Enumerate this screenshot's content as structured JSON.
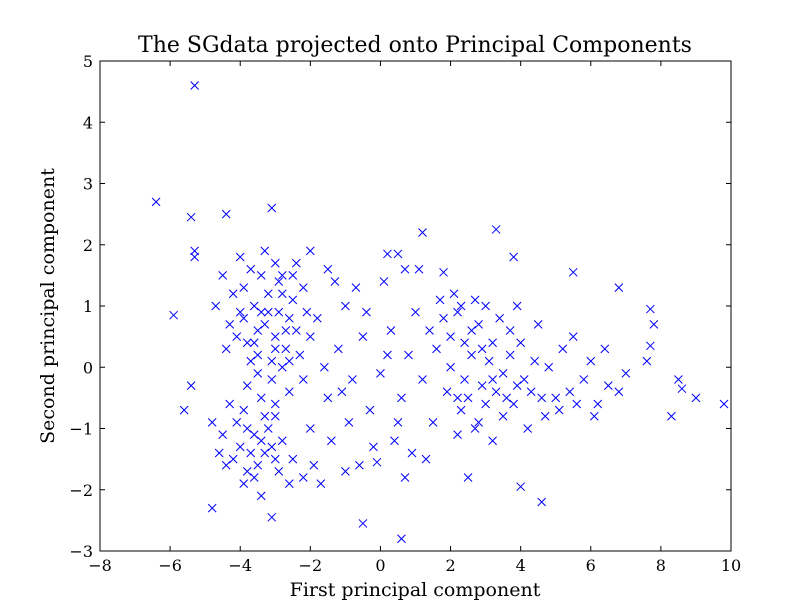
{
  "chart_data": {
    "type": "scatter",
    "title": "The SGdata projected onto Principal Components",
    "xlabel": "First principal component",
    "ylabel": "Second principal component",
    "xlim": [
      -8,
      10
    ],
    "ylim": [
      -3,
      5
    ],
    "xticks": [
      -8,
      -6,
      -4,
      -2,
      0,
      2,
      4,
      6,
      8,
      10
    ],
    "yticks": [
      -3,
      -2,
      -1,
      0,
      1,
      2,
      3,
      4,
      5
    ],
    "xtick_labels": [
      "−8",
      "−6",
      "−4",
      "−2",
      "0",
      "2",
      "4",
      "6",
      "8",
      "10"
    ],
    "ytick_labels": [
      "−3",
      "−2",
      "−1",
      "0",
      "1",
      "2",
      "3",
      "4",
      "5"
    ],
    "grid": false,
    "marker": "x",
    "color": "#0000ff",
    "points": [
      [
        -5.3,
        4.6
      ],
      [
        -6.4,
        2.7
      ],
      [
        -5.4,
        2.45
      ],
      [
        -4.4,
        2.5
      ],
      [
        -3.1,
        2.6
      ],
      [
        -5.3,
        1.9
      ],
      [
        -5.3,
        1.8
      ],
      [
        -5.9,
        0.85
      ],
      [
        -5.6,
        -0.7
      ],
      [
        -5.4,
        -0.3
      ],
      [
        -4.8,
        -2.3
      ],
      [
        -3.1,
        -2.45
      ],
      [
        -0.5,
        -2.55
      ],
      [
        0.6,
        -2.8
      ],
      [
        4.0,
        -1.95
      ],
      [
        4.6,
        -2.2
      ],
      [
        1.2,
        2.2
      ],
      [
        3.3,
        2.25
      ],
      [
        3.8,
        1.8
      ],
      [
        5.5,
        1.55
      ],
      [
        6.8,
        1.3
      ],
      [
        7.7,
        0.95
      ],
      [
        7.8,
        0.7
      ],
      [
        7.7,
        0.35
      ],
      [
        7.6,
        0.1
      ],
      [
        8.3,
        -0.8
      ],
      [
        8.5,
        -0.2
      ],
      [
        8.6,
        -0.35
      ],
      [
        9.0,
        -0.5
      ],
      [
        9.8,
        -0.6
      ],
      [
        4.2,
        -1.0
      ],
      [
        3.2,
        -1.2
      ],
      [
        2.5,
        -1.8
      ],
      [
        0.7,
        -1.8
      ],
      [
        -0.1,
        -1.55
      ],
      [
        0.2,
        1.85
      ],
      [
        0.5,
        1.85
      ],
      [
        0.7,
        1.6
      ],
      [
        1.8,
        1.55
      ],
      [
        -2.0,
        1.9
      ],
      [
        -1.5,
        1.6
      ],
      [
        -4.0,
        1.8
      ],
      [
        -4.5,
        1.5
      ],
      [
        -4.7,
        1.0
      ],
      [
        -3.2,
        0.9
      ],
      [
        -3.0,
        0.5
      ],
      [
        -3.5,
        0.2
      ],
      [
        -2.8,
        1.2
      ],
      [
        -3.4,
        1.5
      ],
      [
        -2.6,
        0.8
      ],
      [
        -3.8,
        0.4
      ],
      [
        -3.1,
        -0.2
      ],
      [
        -2.9,
        1.4
      ],
      [
        -3.3,
        0.7
      ],
      [
        -2.5,
        1.1
      ],
      [
        -3.6,
        1.0
      ],
      [
        -2.7,
        0.3
      ],
      [
        -3.9,
        0.8
      ],
      [
        -2.4,
        0.6
      ],
      [
        -3.0,
        1.7
      ],
      [
        -3.7,
        0.1
      ],
      [
        -2.6,
        -0.4
      ],
      [
        -4.1,
        0.5
      ],
      [
        -2.2,
        1.3
      ],
      [
        -3.4,
        -0.5
      ],
      [
        -2.8,
        0.0
      ],
      [
        -3.2,
        1.2
      ],
      [
        -2.9,
        0.9
      ],
      [
        -3.5,
        0.6
      ],
      [
        -2.3,
        0.2
      ],
      [
        -4.2,
        1.2
      ],
      [
        -3.0,
        -0.8
      ],
      [
        -2.5,
        1.5
      ],
      [
        -3.6,
        0.4
      ],
      [
        -2.1,
        0.9
      ],
      [
        -3.8,
        -0.3
      ],
      [
        -2.7,
        0.6
      ],
      [
        -3.3,
        1.9
      ],
      [
        -4.4,
        0.3
      ],
      [
        -2.4,
        1.7
      ],
      [
        -3.1,
        0.1
      ],
      [
        -3.9,
        1.3
      ],
      [
        -2.6,
        0.1
      ],
      [
        -3.5,
        -0.1
      ],
      [
        -2.0,
        0.5
      ],
      [
        -4.0,
        0.9
      ],
      [
        -3.7,
        1.6
      ],
      [
        -2.2,
        -0.2
      ],
      [
        -3.0,
        0.3
      ],
      [
        -2.8,
        1.5
      ],
      [
        -3.4,
        0.9
      ],
      [
        -4.3,
        0.7
      ],
      [
        -3.8,
        -1.0
      ],
      [
        -3.4,
        -1.2
      ],
      [
        -3.0,
        -1.5
      ],
      [
        -4.2,
        -1.5
      ],
      [
        -3.6,
        -1.8
      ],
      [
        -3.9,
        -0.7
      ],
      [
        -3.2,
        -1.0
      ],
      [
        -4.5,
        -1.1
      ],
      [
        -3.7,
        -1.4
      ],
      [
        -3.3,
        -0.8
      ],
      [
        -4.0,
        -1.3
      ],
      [
        -2.9,
        -1.7
      ],
      [
        -3.5,
        -1.6
      ],
      [
        -4.1,
        -0.9
      ],
      [
        -3.1,
        -1.3
      ],
      [
        -3.8,
        -1.7
      ],
      [
        -2.6,
        -1.9
      ],
      [
        -4.4,
        -1.6
      ],
      [
        -3.6,
        -1.1
      ],
      [
        -3.3,
        -1.4
      ],
      [
        -4.6,
        -1.4
      ],
      [
        -2.8,
        -1.2
      ],
      [
        -3.9,
        -1.9
      ],
      [
        -3.4,
        -2.1
      ],
      [
        -4.3,
        -0.6
      ],
      [
        -3.0,
        -0.6
      ],
      [
        -2.5,
        -1.5
      ],
      [
        -4.8,
        -0.9
      ],
      [
        -2.0,
        -1.0
      ],
      [
        -1.5,
        -0.5
      ],
      [
        -1.2,
        0.3
      ],
      [
        -1.8,
        0.8
      ],
      [
        -0.8,
        -0.2
      ],
      [
        -1.0,
        1.0
      ],
      [
        -1.4,
        -1.2
      ],
      [
        -0.5,
        0.5
      ],
      [
        -0.9,
        -0.9
      ],
      [
        -1.6,
        0.0
      ],
      [
        -0.3,
        -0.7
      ],
      [
        -0.7,
        1.3
      ],
      [
        -1.9,
        -1.6
      ],
      [
        -1.1,
        -0.4
      ],
      [
        -0.4,
        0.9
      ],
      [
        -1.3,
        1.4
      ],
      [
        0.0,
        -0.1
      ],
      [
        0.3,
        0.6
      ],
      [
        -0.2,
        -1.3
      ],
      [
        0.5,
        -0.9
      ],
      [
        0.8,
        0.2
      ],
      [
        0.1,
        1.4
      ],
      [
        0.6,
        -0.5
      ],
      [
        1.0,
        0.9
      ],
      [
        -1.7,
        -1.9
      ],
      [
        -0.6,
        -1.6
      ],
      [
        0.4,
        -1.2
      ],
      [
        0.9,
        -1.4
      ],
      [
        -2.2,
        -1.8
      ],
      [
        -1.0,
        -1.7
      ],
      [
        1.2,
        -0.2
      ],
      [
        0.2,
        0.2
      ],
      [
        2.0,
        0.5
      ],
      [
        2.3,
        1.0
      ],
      [
        2.6,
        0.2
      ],
      [
        1.8,
        0.8
      ],
      [
        2.9,
        -0.3
      ],
      [
        3.2,
        0.4
      ],
      [
        2.5,
        -0.5
      ],
      [
        3.5,
        -0.1
      ],
      [
        2.1,
        1.2
      ],
      [
        2.8,
        0.7
      ],
      [
        3.0,
        -0.6
      ],
      [
        1.6,
        0.3
      ],
      [
        3.7,
        0.2
      ],
      [
        2.4,
        -0.2
      ],
      [
        3.3,
        -0.4
      ],
      [
        2.2,
        0.9
      ],
      [
        3.9,
        -0.3
      ],
      [
        2.7,
        1.1
      ],
      [
        1.9,
        -0.4
      ],
      [
        3.1,
        0.1
      ],
      [
        4.1,
        -0.2
      ],
      [
        2.0,
        0.0
      ],
      [
        3.6,
        -0.5
      ],
      [
        2.6,
        0.6
      ],
      [
        3.4,
        0.8
      ],
      [
        1.7,
        1.1
      ],
      [
        4.3,
        -0.4
      ],
      [
        2.9,
        0.3
      ],
      [
        3.8,
        -0.6
      ],
      [
        2.3,
        -0.7
      ],
      [
        4.6,
        -0.5
      ],
      [
        3.0,
        1.0
      ],
      [
        4.0,
        0.4
      ],
      [
        2.4,
        0.4
      ],
      [
        3.5,
        -0.8
      ],
      [
        2.8,
        -0.9
      ],
      [
        4.4,
        0.1
      ],
      [
        3.2,
        -0.2
      ],
      [
        2.2,
        -0.5
      ],
      [
        3.7,
        0.6
      ],
      [
        5.0,
        -0.5
      ],
      [
        5.4,
        -0.4
      ],
      [
        5.8,
        -0.2
      ],
      [
        6.2,
        -0.6
      ],
      [
        5.2,
        0.3
      ],
      [
        6.0,
        0.1
      ],
      [
        5.6,
        -0.6
      ],
      [
        6.5,
        -0.3
      ],
      [
        4.8,
        0.0
      ],
      [
        5.1,
        -0.7
      ],
      [
        6.8,
        -0.4
      ],
      [
        7.0,
        -0.1
      ],
      [
        6.4,
        0.3
      ],
      [
        5.5,
        0.5
      ],
      [
        4.7,
        -0.8
      ],
      [
        6.1,
        -0.8
      ],
      [
        1.5,
        -0.9
      ],
      [
        2.2,
        -1.1
      ],
      [
        1.3,
        -1.5
      ],
      [
        2.7,
        -1.0
      ],
      [
        1.1,
        1.6
      ],
      [
        1.4,
        0.6
      ],
      [
        3.9,
        1.0
      ],
      [
        4.5,
        0.7
      ]
    ]
  }
}
